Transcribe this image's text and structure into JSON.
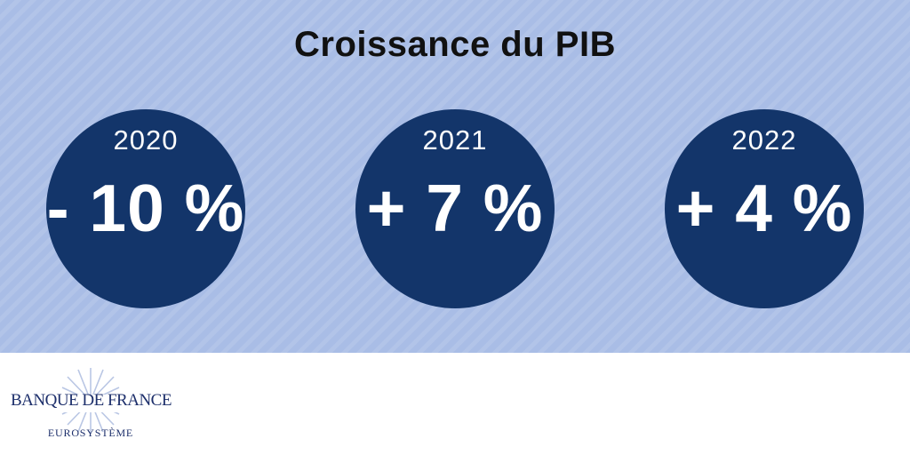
{
  "title": "Croissance du PIB",
  "figures": [
    {
      "year": "2020",
      "value": "- 10 %"
    },
    {
      "year": "2021",
      "value": "+ 7 %"
    },
    {
      "year": "2022",
      "value": "+ 4 %"
    }
  ],
  "logo": {
    "name": "BANQUE DE FRANCE",
    "subtitle": "EUROSYSTÈME"
  },
  "colors": {
    "banner": "#a9bde6",
    "circle": "#13356a",
    "logo": "#1d2f6b"
  }
}
